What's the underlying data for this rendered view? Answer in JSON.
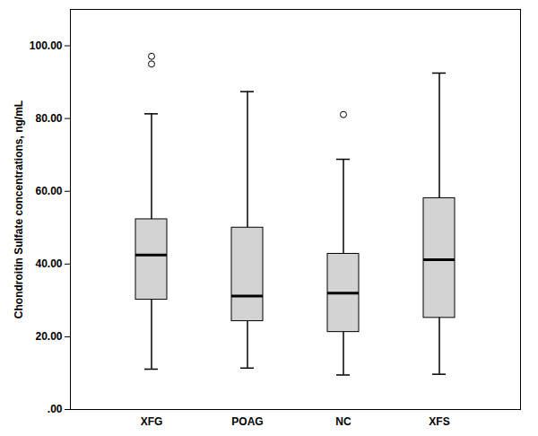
{
  "chart_data": {
    "type": "box",
    "y_label": "Chondroitin Sulfate concentrations, ng/mL",
    "categories": [
      "XFG",
      "POAG",
      "NC",
      "XFS"
    ],
    "boxes": [
      {
        "whisker_low": 11.1,
        "q1": 30.2,
        "median": 42.5,
        "q3": 52.3,
        "whisker_high": 81.3,
        "outliers": [
          97.1,
          95.0
        ]
      },
      {
        "whisker_low": 11.4,
        "q1": 24.3,
        "median": 31.2,
        "q3": 50.0,
        "whisker_high": 87.4,
        "outliers": []
      },
      {
        "whisker_low": 9.5,
        "q1": 21.3,
        "median": 32.0,
        "q3": 42.8,
        "whisker_high": 68.8,
        "outliers": [
          81.1
        ]
      },
      {
        "whisker_low": 9.7,
        "q1": 25.2,
        "median": 41.2,
        "q3": 58.1,
        "whisker_high": 92.5,
        "outliers": []
      }
    ],
    "color": "#d3d3d3",
    "ylim": [
      0,
      110
    ],
    "yticks": [
      {
        "value": 0,
        "label": ".00"
      },
      {
        "value": 20,
        "label": "20.00"
      },
      {
        "value": 40,
        "label": "40.00"
      },
      {
        "value": 60,
        "label": "60.00"
      },
      {
        "value": 80,
        "label": "80.00"
      },
      {
        "value": 100,
        "label": "100.00"
      }
    ]
  }
}
